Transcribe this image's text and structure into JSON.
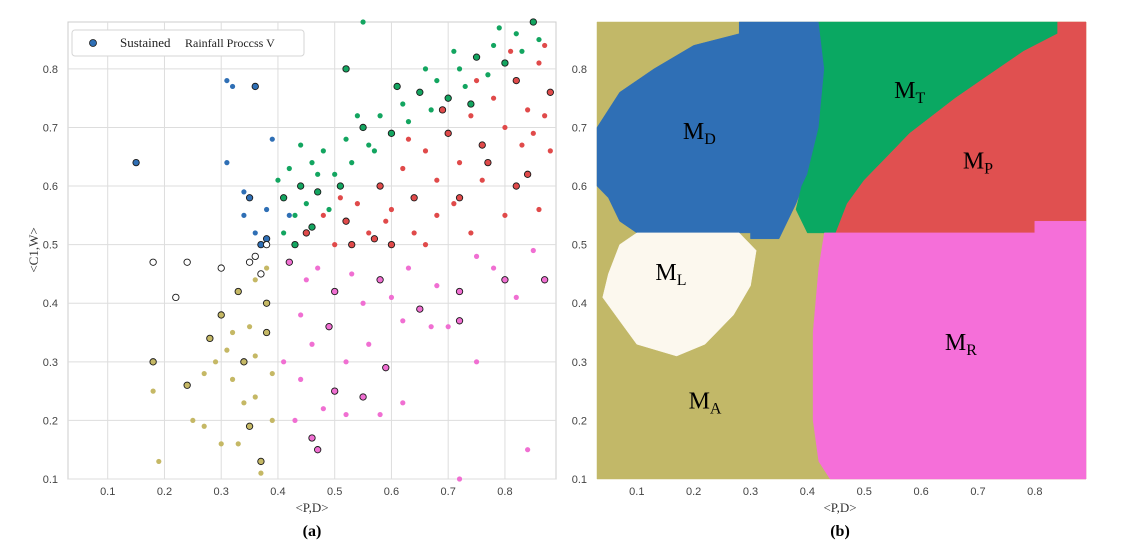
{
  "chart_data": [
    {
      "type": "scatter",
      "panel_label": "(a)",
      "xlabel": "<P,D>",
      "ylabel": "<C1,W>",
      "xlim": [
        0.03,
        0.89
      ],
      "ylim": [
        0.1,
        0.88
      ],
      "xticks": [
        "0.1",
        "0.2",
        "0.3",
        "0.4",
        "0.5",
        "0.6",
        "0.7",
        "0.8"
      ],
      "yticks": [
        "0.1",
        "0.2",
        "0.3",
        "0.4",
        "0.5",
        "0.6",
        "0.7",
        "0.8"
      ],
      "grid": true,
      "legend": {
        "position": "top-left",
        "label_main": "Sustained",
        "label_sub": "Rainfall Proccss V"
      },
      "colors": {
        "D": "#2f6fb5",
        "T": "#13a560",
        "P": "#e04a4a",
        "R": "#f06fd2",
        "A": "#c5b865",
        "L": "#ffffff"
      },
      "series": [
        {
          "key": "D",
          "points": [
            [
              0.15,
              0.64
            ],
            [
              0.31,
              0.78
            ],
            [
              0.32,
              0.77
            ],
            [
              0.36,
              0.77
            ],
            [
              0.31,
              0.64
            ],
            [
              0.34,
              0.59
            ],
            [
              0.35,
              0.58
            ],
            [
              0.34,
              0.55
            ],
            [
              0.36,
              0.52
            ],
            [
              0.38,
              0.51
            ],
            [
              0.39,
              0.68
            ],
            [
              0.38,
              0.56
            ],
            [
              0.37,
              0.5
            ],
            [
              0.42,
              0.55
            ]
          ]
        },
        {
          "key": "T",
          "points": [
            [
              0.52,
              0.8
            ],
            [
              0.55,
              0.88
            ],
            [
              0.4,
              0.61
            ],
            [
              0.41,
              0.58
            ],
            [
              0.42,
              0.63
            ],
            [
              0.43,
              0.55
            ],
            [
              0.44,
              0.6
            ],
            [
              0.45,
              0.57
            ],
            [
              0.46,
              0.64
            ],
            [
              0.47,
              0.59
            ],
            [
              0.48,
              0.66
            ],
            [
              0.5,
              0.62
            ],
            [
              0.51,
              0.6
            ],
            [
              0.52,
              0.68
            ],
            [
              0.53,
              0.64
            ],
            [
              0.55,
              0.7
            ],
            [
              0.56,
              0.67
            ],
            [
              0.58,
              0.72
            ],
            [
              0.6,
              0.69
            ],
            [
              0.62,
              0.74
            ],
            [
              0.63,
              0.71
            ],
            [
              0.65,
              0.76
            ],
            [
              0.67,
              0.73
            ],
            [
              0.68,
              0.78
            ],
            [
              0.7,
              0.75
            ],
            [
              0.72,
              0.8
            ],
            [
              0.73,
              0.77
            ],
            [
              0.75,
              0.82
            ],
            [
              0.77,
              0.79
            ],
            [
              0.78,
              0.84
            ],
            [
              0.8,
              0.81
            ],
            [
              0.82,
              0.86
            ],
            [
              0.83,
              0.83
            ],
            [
              0.85,
              0.88
            ],
            [
              0.86,
              0.85
            ],
            [
              0.44,
              0.67
            ],
            [
              0.46,
              0.53
            ],
            [
              0.49,
              0.56
            ],
            [
              0.57,
              0.66
            ],
            [
              0.61,
              0.77
            ],
            [
              0.66,
              0.8
            ],
            [
              0.71,
              0.83
            ],
            [
              0.74,
              0.74
            ],
            [
              0.79,
              0.87
            ],
            [
              0.41,
              0.52
            ],
            [
              0.43,
              0.5
            ],
            [
              0.47,
              0.62
            ],
            [
              0.54,
              0.72
            ]
          ]
        },
        {
          "key": "P",
          "points": [
            [
              0.45,
              0.52
            ],
            [
              0.48,
              0.55
            ],
            [
              0.5,
              0.5
            ],
            [
              0.52,
              0.54
            ],
            [
              0.54,
              0.57
            ],
            [
              0.56,
              0.52
            ],
            [
              0.58,
              0.6
            ],
            [
              0.6,
              0.56
            ],
            [
              0.62,
              0.63
            ],
            [
              0.64,
              0.58
            ],
            [
              0.66,
              0.66
            ],
            [
              0.68,
              0.61
            ],
            [
              0.7,
              0.69
            ],
            [
              0.72,
              0.64
            ],
            [
              0.74,
              0.72
            ],
            [
              0.76,
              0.67
            ],
            [
              0.78,
              0.75
            ],
            [
              0.8,
              0.7
            ],
            [
              0.82,
              0.78
            ],
            [
              0.84,
              0.73
            ],
            [
              0.86,
              0.81
            ],
            [
              0.88,
              0.76
            ],
            [
              0.64,
              0.52
            ],
            [
              0.68,
              0.55
            ],
            [
              0.72,
              0.58
            ],
            [
              0.76,
              0.61
            ],
            [
              0.8,
              0.55
            ],
            [
              0.84,
              0.62
            ],
            [
              0.86,
              0.56
            ],
            [
              0.88,
              0.66
            ],
            [
              0.6,
              0.5
            ],
            [
              0.66,
              0.5
            ],
            [
              0.74,
              0.52
            ],
            [
              0.82,
              0.6
            ],
            [
              0.85,
              0.69
            ],
            [
              0.87,
              0.84
            ],
            [
              0.57,
              0.51
            ],
            [
              0.51,
              0.58
            ],
            [
              0.63,
              0.68
            ],
            [
              0.69,
              0.73
            ],
            [
              0.75,
              0.78
            ],
            [
              0.81,
              0.83
            ],
            [
              0.53,
              0.5
            ],
            [
              0.59,
              0.54
            ],
            [
              0.71,
              0.57
            ],
            [
              0.77,
              0.64
            ],
            [
              0.83,
              0.67
            ],
            [
              0.87,
              0.72
            ]
          ]
        },
        {
          "key": "R",
          "points": [
            [
              0.42,
              0.47
            ],
            [
              0.45,
              0.44
            ],
            [
              0.47,
              0.46
            ],
            [
              0.5,
              0.42
            ],
            [
              0.53,
              0.45
            ],
            [
              0.55,
              0.4
            ],
            [
              0.58,
              0.44
            ],
            [
              0.6,
              0.41
            ],
            [
              0.63,
              0.46
            ],
            [
              0.65,
              0.39
            ],
            [
              0.68,
              0.43
            ],
            [
              0.7,
              0.36
            ],
            [
              0.72,
              0.42
            ],
            [
              0.75,
              0.48
            ],
            [
              0.78,
              0.46
            ],
            [
              0.8,
              0.44
            ],
            [
              0.82,
              0.41
            ],
            [
              0.85,
              0.49
            ],
            [
              0.87,
              0.44
            ],
            [
              0.44,
              0.38
            ],
            [
              0.46,
              0.33
            ],
            [
              0.49,
              0.36
            ],
            [
              0.52,
              0.3
            ],
            [
              0.56,
              0.33
            ],
            [
              0.59,
              0.29
            ],
            [
              0.62,
              0.37
            ],
            [
              0.67,
              0.36
            ],
            [
              0.72,
              0.37
            ],
            [
              0.75,
              0.3
            ],
            [
              0.43,
              0.2
            ],
            [
              0.46,
              0.17
            ],
            [
              0.48,
              0.22
            ],
            [
              0.52,
              0.21
            ],
            [
              0.55,
              0.24
            ],
            [
              0.58,
              0.21
            ],
            [
              0.62,
              0.23
            ],
            [
              0.47,
              0.15
            ],
            [
              0.72,
              0.1
            ],
            [
              0.84,
              0.15
            ],
            [
              0.5,
              0.25
            ],
            [
              0.44,
              0.27
            ],
            [
              0.41,
              0.3
            ]
          ]
        },
        {
          "key": "A",
          "points": [
            [
              0.18,
              0.3
            ],
            [
              0.18,
              0.25
            ],
            [
              0.19,
              0.13
            ],
            [
              0.24,
              0.26
            ],
            [
              0.25,
              0.2
            ],
            [
              0.27,
              0.28
            ],
            [
              0.28,
              0.34
            ],
            [
              0.29,
              0.3
            ],
            [
              0.3,
              0.16
            ],
            [
              0.3,
              0.38
            ],
            [
              0.31,
              0.32
            ],
            [
              0.32,
              0.27
            ],
            [
              0.33,
              0.42
            ],
            [
              0.34,
              0.23
            ],
            [
              0.35,
              0.36
            ],
            [
              0.35,
              0.19
            ],
            [
              0.36,
              0.44
            ],
            [
              0.36,
              0.31
            ],
            [
              0.37,
              0.13
            ],
            [
              0.37,
              0.11
            ],
            [
              0.38,
              0.46
            ],
            [
              0.38,
              0.4
            ],
            [
              0.39,
              0.2
            ],
            [
              0.39,
              0.28
            ],
            [
              0.34,
              0.3
            ],
            [
              0.32,
              0.35
            ],
            [
              0.36,
              0.24
            ],
            [
              0.38,
              0.35
            ],
            [
              0.27,
              0.19
            ],
            [
              0.33,
              0.16
            ]
          ]
        },
        {
          "key": "L",
          "points": [
            [
              0.18,
              0.47
            ],
            [
              0.22,
              0.41
            ],
            [
              0.24,
              0.47
            ],
            [
              0.3,
              0.46
            ],
            [
              0.36,
              0.48
            ],
            [
              0.37,
              0.45
            ],
            [
              0.38,
              0.5
            ],
            [
              0.35,
              0.47
            ]
          ]
        }
      ]
    },
    {
      "type": "heatmap",
      "panel_label": "(b)",
      "xlabel": "<P,D>",
      "xlim": [
        0.03,
        0.89
      ],
      "ylim": [
        0.1,
        0.88
      ],
      "xticks": [
        "0.1",
        "0.2",
        "0.3",
        "0.4",
        "0.5",
        "0.6",
        "0.7",
        "0.8"
      ],
      "yticks": [
        "0.1",
        "0.2",
        "0.3",
        "0.4",
        "0.5",
        "0.6",
        "0.7",
        "0.8"
      ],
      "regions": [
        {
          "key": "A",
          "label": "M",
          "sub": "A",
          "color": "#c2b868",
          "label_at": [
            0.22,
            0.22
          ]
        },
        {
          "key": "D",
          "label": "M",
          "sub": "D",
          "color": "#2f6fb5",
          "label_at": [
            0.21,
            0.68
          ]
        },
        {
          "key": "T",
          "label": "M",
          "sub": "T",
          "color": "#0aa862",
          "label_at": [
            0.58,
            0.75
          ]
        },
        {
          "key": "P",
          "label": "M",
          "sub": "P",
          "color": "#e05050",
          "label_at": [
            0.7,
            0.63
          ]
        },
        {
          "key": "L",
          "label": "M",
          "sub": "L",
          "color": "#fcf8ee",
          "label_at": [
            0.16,
            0.44
          ]
        },
        {
          "key": "R",
          "label": "M",
          "sub": "R",
          "color": "#f56fd9",
          "label_at": [
            0.67,
            0.32
          ]
        }
      ]
    }
  ]
}
